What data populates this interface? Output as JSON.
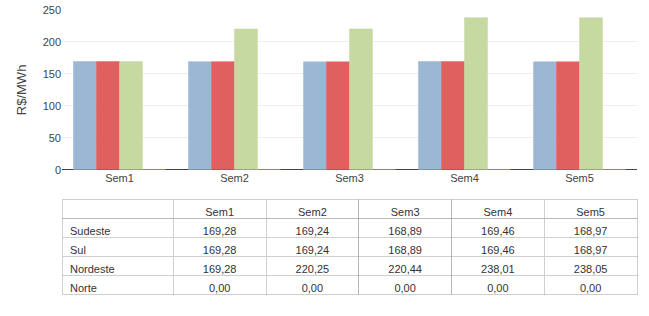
{
  "chart_data": {
    "type": "bar",
    "categories": [
      "Sem1",
      "Sem2",
      "Sem3",
      "Sem4",
      "Sem5"
    ],
    "series": [
      {
        "name": "Sudeste",
        "color": "#9BB7D4",
        "values": [
          169.28,
          169.24,
          168.89,
          169.46,
          168.97
        ],
        "value_labels": [
          "169,28",
          "169,24",
          "168,89",
          "169,46",
          "168,97"
        ]
      },
      {
        "name": "Sul",
        "color": "#E06060",
        "values": [
          169.28,
          169.24,
          168.89,
          169.46,
          168.97
        ],
        "value_labels": [
          "169,28",
          "169,24",
          "168,89",
          "169,46",
          "168,97"
        ]
      },
      {
        "name": "Nordeste",
        "color": "#C5D9A0",
        "values": [
          169.28,
          220.25,
          220.44,
          238.01,
          238.05
        ],
        "value_labels": [
          "169,28",
          "220,25",
          "220,44",
          "238,01",
          "238,05"
        ]
      },
      {
        "name": "Norte",
        "color": "#FFDF80",
        "values": [
          0.0,
          0.0,
          0.0,
          0.0,
          0.0
        ],
        "value_labels": [
          "0,00",
          "0,00",
          "0,00",
          "0,00",
          "0,00"
        ]
      }
    ],
    "ylabel": "R$/MWh",
    "ylim": [
      0,
      250
    ],
    "yticks": [
      0,
      50,
      100,
      150,
      200,
      250
    ],
    "grid": true
  }
}
